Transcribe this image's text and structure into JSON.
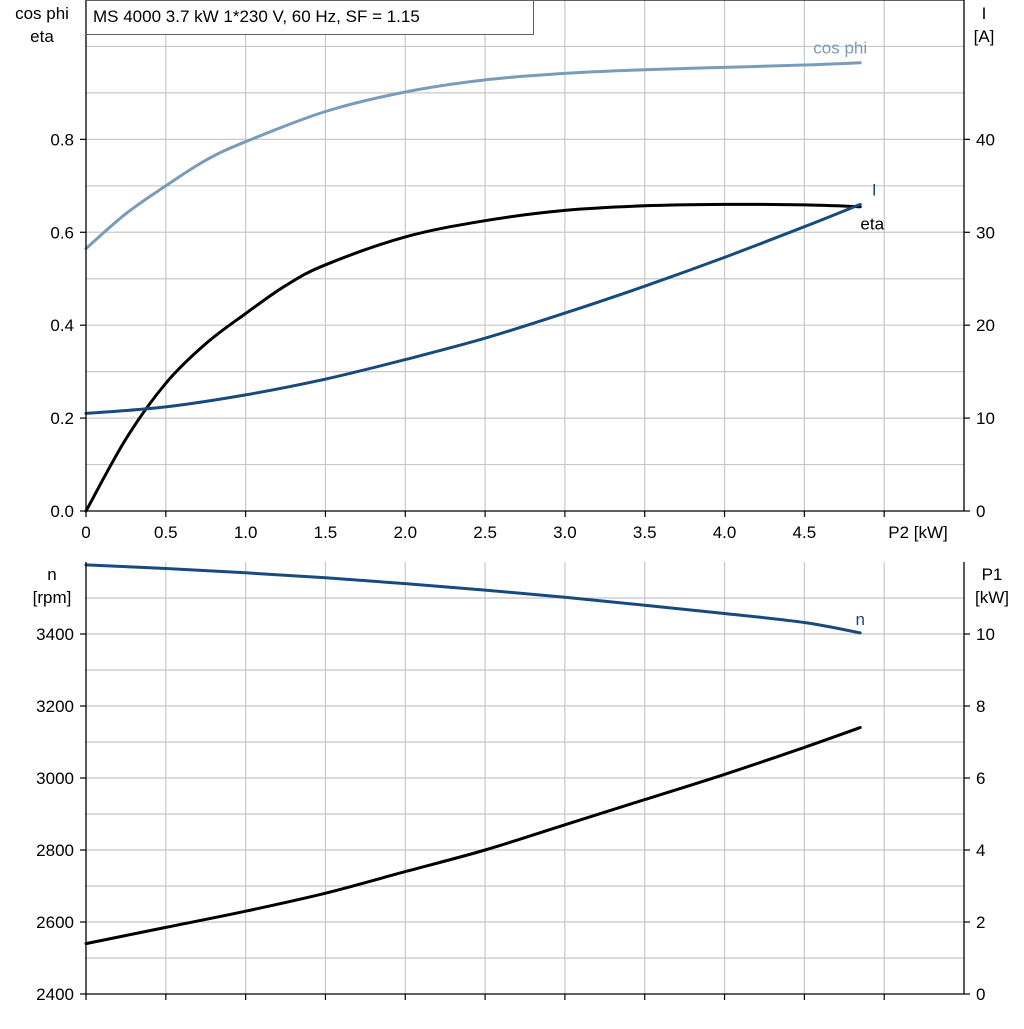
{
  "chart_data": [
    {
      "type": "line",
      "title": "MS 4000   3.7 kW   1*230 V, 60 Hz, SF = 1.15",
      "xlabel": "P2 [kW]",
      "ylabel_left": [
        "cos phi",
        "eta"
      ],
      "ylabel_right": [
        "I",
        "[A]"
      ],
      "xlim": [
        0,
        5.5
      ],
      "ylim_left": [
        0,
        1.1
      ],
      "ylim_right": [
        0,
        55
      ],
      "x_ticks": [
        "0",
        "0.5",
        "1.0",
        "1.5",
        "2.0",
        "2.5",
        "3.0",
        "3.5",
        "4.0",
        "4.5"
      ],
      "y_ticks_left": [
        "0.0",
        "0.2",
        "0.4",
        "0.6",
        "0.8"
      ],
      "y_ticks_right": [
        "0",
        "10",
        "20",
        "30",
        "40"
      ],
      "grid": true,
      "series": [
        {
          "name": "cos phi",
          "axis": "left",
          "color": "#7a9cbb",
          "x": [
            0,
            0.25,
            0.5,
            0.75,
            1.0,
            1.5,
            2.0,
            2.5,
            3.0,
            3.5,
            4.0,
            4.5,
            4.85
          ],
          "y": [
            0.565,
            0.64,
            0.7,
            0.755,
            0.795,
            0.86,
            0.902,
            0.928,
            0.942,
            0.95,
            0.955,
            0.96,
            0.965
          ]
        },
        {
          "name": "eta",
          "axis": "left",
          "color": "#000000",
          "x": [
            0,
            0.25,
            0.5,
            0.75,
            1.0,
            1.25,
            1.5,
            2.0,
            2.5,
            3.0,
            3.5,
            4.0,
            4.5,
            4.85
          ],
          "y": [
            0,
            0.155,
            0.275,
            0.36,
            0.425,
            0.485,
            0.53,
            0.59,
            0.625,
            0.647,
            0.657,
            0.66,
            0.659,
            0.655
          ]
        },
        {
          "name": "I",
          "axis": "right",
          "color": "#174b7e",
          "x": [
            0,
            0.5,
            1.0,
            1.5,
            2.0,
            2.5,
            3.0,
            3.5,
            4.0,
            4.5,
            4.85
          ],
          "y": [
            10.5,
            11.2,
            12.5,
            14.2,
            16.3,
            18.6,
            21.3,
            24.2,
            27.3,
            30.6,
            33.0
          ]
        }
      ]
    },
    {
      "type": "line",
      "xlabel": "",
      "ylabel_left": [
        "n",
        "[rpm]"
      ],
      "ylabel_right": [
        "P1",
        "[kW]"
      ],
      "xlim": [
        0,
        5.5
      ],
      "ylim_left": [
        2400,
        3600
      ],
      "ylim_right": [
        0,
        12
      ],
      "y_ticks_left": [
        "2400",
        "2600",
        "2800",
        "3000",
        "3200",
        "3400"
      ],
      "y_ticks_right": [
        "0",
        "2",
        "4",
        "6",
        "8",
        "10"
      ],
      "grid": true,
      "series": [
        {
          "name": "n",
          "axis": "left",
          "color": "#174b7e",
          "x": [
            0,
            0.5,
            1.0,
            1.5,
            2.0,
            2.5,
            3.0,
            3.5,
            4.0,
            4.5,
            4.85
          ],
          "y": [
            3592,
            3582,
            3570,
            3556,
            3540,
            3522,
            3502,
            3480,
            3457,
            3432,
            3403
          ]
        },
        {
          "name": "",
          "axis": "right",
          "color": "#000000",
          "x": [
            0,
            0.5,
            1.0,
            1.5,
            2.0,
            2.5,
            3.0,
            3.5,
            4.0,
            4.5,
            4.85
          ],
          "y": [
            1.4,
            1.85,
            2.3,
            2.8,
            3.4,
            4.0,
            4.7,
            5.4,
            6.1,
            6.85,
            7.4
          ]
        }
      ]
    }
  ]
}
